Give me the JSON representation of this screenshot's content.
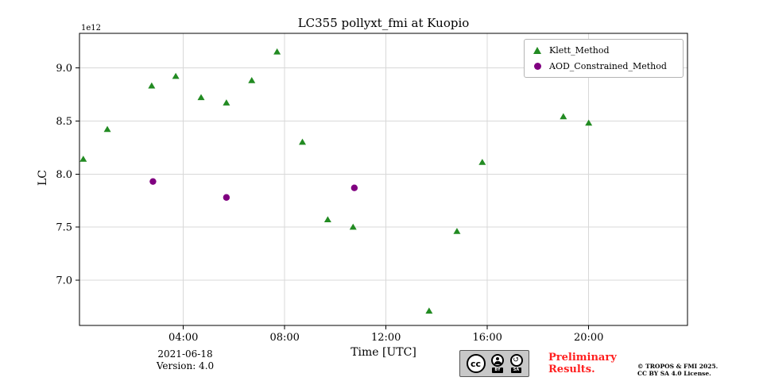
{
  "title": "LC355 pollyxt_fmi at Kuopio",
  "offset_label": "1e12",
  "chart_data": {
    "type": "scatter",
    "title": "LC355 pollyxt_fmi at Kuopio",
    "xlabel": "Time [UTC]",
    "ylabel": "LC",
    "y_offset_multiplier": "1e12",
    "xlim": [
      -0.1,
      23.9
    ],
    "ylim": [
      6.575,
      9.325
    ],
    "x_ticks": [
      4,
      8,
      12,
      16,
      20
    ],
    "x_tick_labels": [
      "04:00",
      "08:00",
      "12:00",
      "16:00",
      "20:00"
    ],
    "y_ticks": [
      7.0,
      7.5,
      8.0,
      8.5,
      9.0
    ],
    "y_tick_labels": [
      "7.0",
      "7.5",
      "8.0",
      "8.5",
      "9.0"
    ],
    "grid": true,
    "grid_color": "#d8d8d8",
    "legend_position": "upper right",
    "series": [
      {
        "name": "Klett_Method",
        "marker": "triangle",
        "color": "#228b22",
        "x": [
          0.05,
          1.0,
          2.75,
          3.7,
          4.7,
          5.7,
          6.7,
          7.7,
          8.7,
          9.7,
          10.7,
          13.7,
          14.8,
          15.8,
          19.0,
          20.0
        ],
        "y": [
          8.14,
          8.42,
          8.83,
          8.92,
          8.72,
          8.67,
          8.88,
          9.15,
          8.3,
          7.57,
          7.5,
          6.71,
          7.46,
          8.11,
          8.54,
          8.48
        ]
      },
      {
        "name": "AOD_Constrained_Method",
        "marker": "circle",
        "color": "#800080",
        "x": [
          2.8,
          5.7,
          10.75
        ],
        "y": [
          7.93,
          7.78,
          7.87
        ]
      }
    ]
  },
  "footer": {
    "date": "2021-06-18",
    "version": "Version: 4.0",
    "preliminary_line1": "Preliminary",
    "preliminary_line2": "Results.",
    "copyright_line1": "© TROPOS & FMI 2025.",
    "copyright_line2": "CC BY SA 4.0 License.",
    "cc_badge": {
      "cc": "cc",
      "by": "BY",
      "sa": "SA"
    }
  },
  "colors": {
    "klett_green": "#228b22",
    "aod_purple": "#800080",
    "preliminary_red": "#ff1f1f",
    "grid": "#d8d8d8",
    "axes": "#000000"
  }
}
